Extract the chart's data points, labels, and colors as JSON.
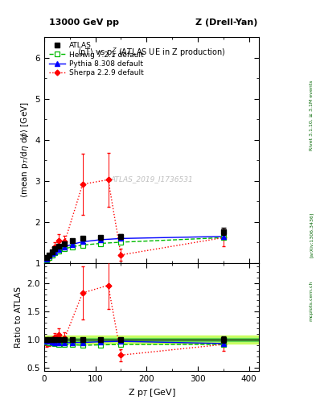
{
  "title_left": "13000 GeV pp",
  "title_right": "Z (Drell-Yan)",
  "plot_title": "<pT> vs p_{T}^{Z} (ATLAS UE in Z production)",
  "xlabel": "Z p$_T$ [GeV]",
  "ylabel_main": "<mean p$_T$/d$\\eta$ d$\\phi$> [GeV]",
  "ylabel_ratio": "Ratio to ATLAS",
  "right_label_top": "Rivet 3.1.10, ≥ 3.1M events",
  "right_label_mid": "[arXiv:1306.3436]",
  "right_label_bot": "mcplots.cern.ch",
  "watermark": "ATLAS_2019_I1736531",
  "atlas_x": [
    5,
    10,
    15,
    20,
    28,
    40,
    55,
    75,
    110,
    150,
    350
  ],
  "atlas_y": [
    1.13,
    1.2,
    1.28,
    1.35,
    1.42,
    1.48,
    1.54,
    1.6,
    1.63,
    1.65,
    1.77
  ],
  "atlas_yerr": [
    0.04,
    0.04,
    0.03,
    0.03,
    0.03,
    0.03,
    0.03,
    0.03,
    0.04,
    0.05,
    0.09
  ],
  "herwig_x": [
    5,
    10,
    15,
    20,
    28,
    40,
    55,
    75,
    110,
    150,
    350
  ],
  "herwig_y": [
    1.08,
    1.14,
    1.2,
    1.25,
    1.3,
    1.35,
    1.4,
    1.44,
    1.48,
    1.51,
    1.62
  ],
  "herwig_color": "#00bb00",
  "pythia_x": [
    5,
    10,
    15,
    20,
    28,
    40,
    55,
    75,
    110,
    150,
    350
  ],
  "pythia_y": [
    1.1,
    1.17,
    1.23,
    1.28,
    1.34,
    1.4,
    1.46,
    1.52,
    1.57,
    1.6,
    1.65
  ],
  "pythia_color": "#0000ff",
  "sherpa_x": [
    5,
    10,
    15,
    20,
    28,
    40,
    75,
    125,
    150,
    350
  ],
  "sherpa_y": [
    1.05,
    1.14,
    1.26,
    1.4,
    1.55,
    1.52,
    2.92,
    3.03,
    1.2,
    1.62
  ],
  "sherpa_yerr": [
    0.06,
    0.07,
    0.08,
    0.1,
    0.15,
    0.15,
    0.75,
    0.65,
    0.15,
    0.2
  ],
  "sherpa_color": "#ff0000",
  "herwig_ratio": [
    0.956,
    0.95,
    0.938,
    0.926,
    0.916,
    0.912,
    0.909,
    0.9,
    0.908,
    0.915,
    0.915
  ],
  "pythia_ratio": [
    0.973,
    0.975,
    0.961,
    0.948,
    0.943,
    0.946,
    0.948,
    0.95,
    0.963,
    0.97,
    0.932
  ],
  "sherpa_ratio_x": [
    5,
    10,
    15,
    20,
    28,
    40,
    75,
    125,
    150,
    350
  ],
  "sherpa_ratio": [
    0.929,
    0.95,
    0.984,
    1.037,
    1.092,
    1.027,
    1.825,
    1.958,
    0.727,
    0.915
  ],
  "sherpa_ratio_yerr": [
    0.055,
    0.06,
    0.065,
    0.075,
    0.11,
    0.105,
    0.47,
    0.42,
    0.11,
    0.115
  ],
  "xlim": [
    0,
    420
  ],
  "ylim_main": [
    1.0,
    6.5
  ],
  "ylim_ratio": [
    0.45,
    2.35
  ],
  "yticks_main": [
    1,
    2,
    3,
    4,
    5,
    6
  ],
  "yticks_ratio": [
    0.5,
    1.0,
    1.5,
    2.0
  ],
  "xticks": [
    0,
    100,
    200,
    300,
    400
  ]
}
